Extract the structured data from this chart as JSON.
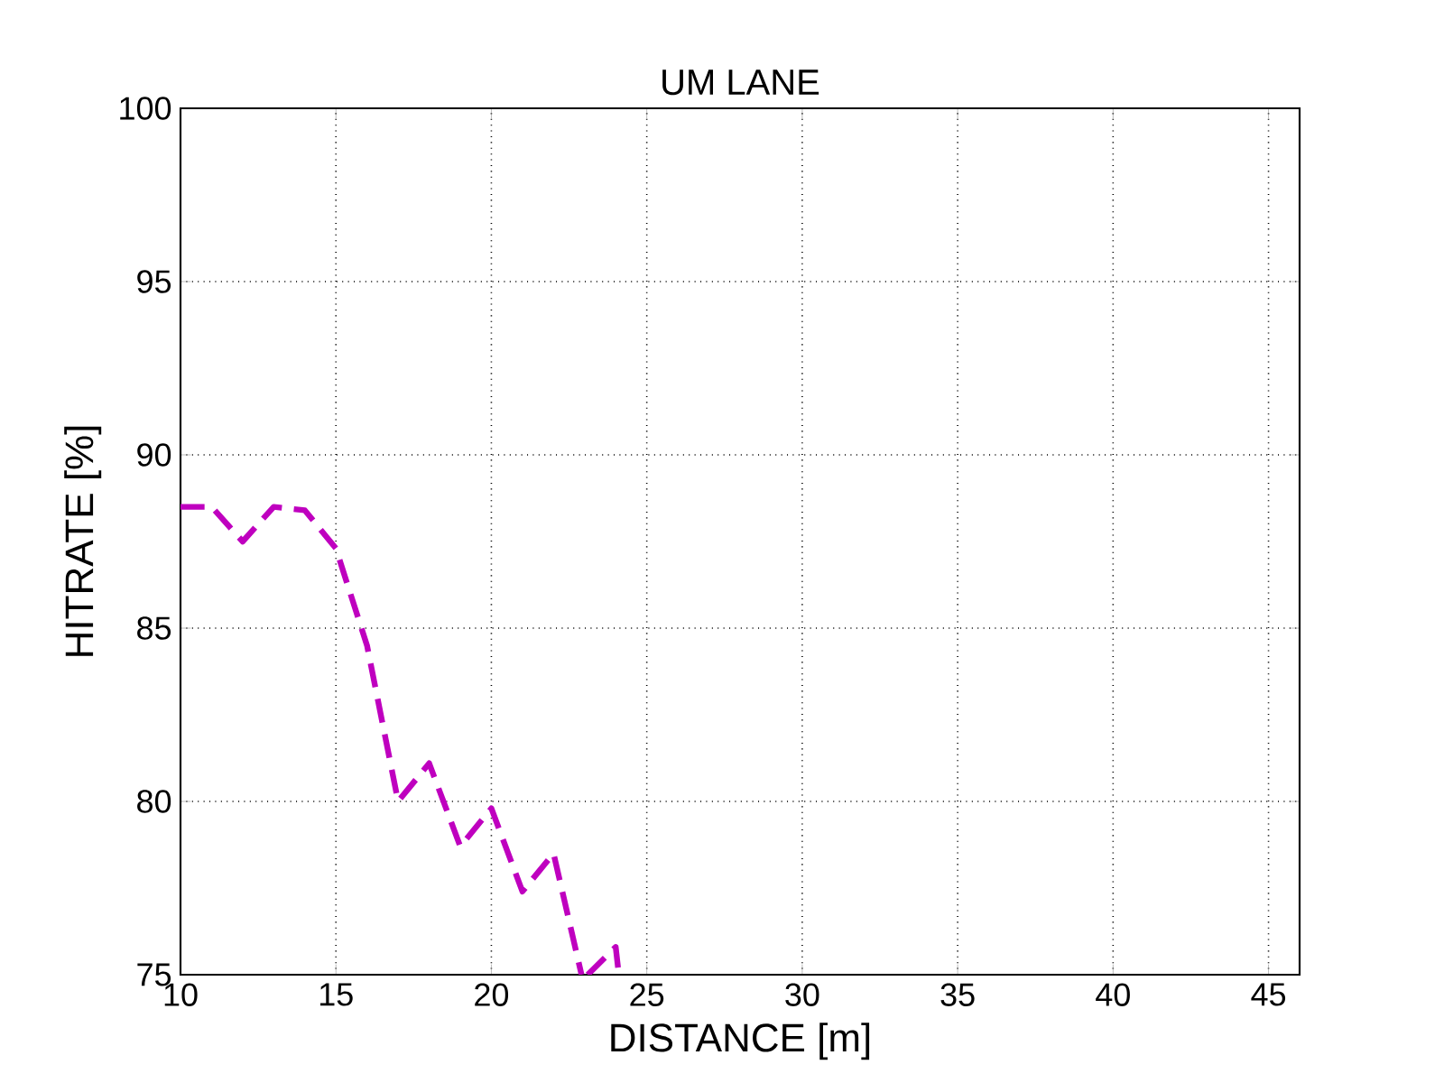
{
  "chart_data": {
    "type": "line",
    "title": "UM LANE",
    "xlabel": "DISTANCE [m]",
    "ylabel": "HITRATE [%]",
    "x": [
      10,
      11,
      12,
      13,
      14,
      15,
      16,
      17,
      18,
      19,
      20,
      21,
      22,
      22.9,
      23,
      23.1,
      24,
      24.1
    ],
    "series": [
      {
        "color": "#bf00bf",
        "values": [
          88.5,
          88.5,
          87.5,
          88.5,
          88.4,
          87.3,
          84.5,
          80.0,
          81.1,
          78.7,
          79.8,
          77.4,
          78.5,
          75,
          null,
          75,
          75.8,
          75
        ]
      }
    ],
    "xlim": [
      10,
      46
    ],
    "ylim": [
      75,
      100
    ],
    "xticks": [
      10,
      15,
      20,
      25,
      30,
      35,
      40,
      45
    ],
    "yticks": [
      75,
      80,
      85,
      90,
      95,
      100
    ],
    "grid": true,
    "line_style": "dashed",
    "marker": "none"
  }
}
